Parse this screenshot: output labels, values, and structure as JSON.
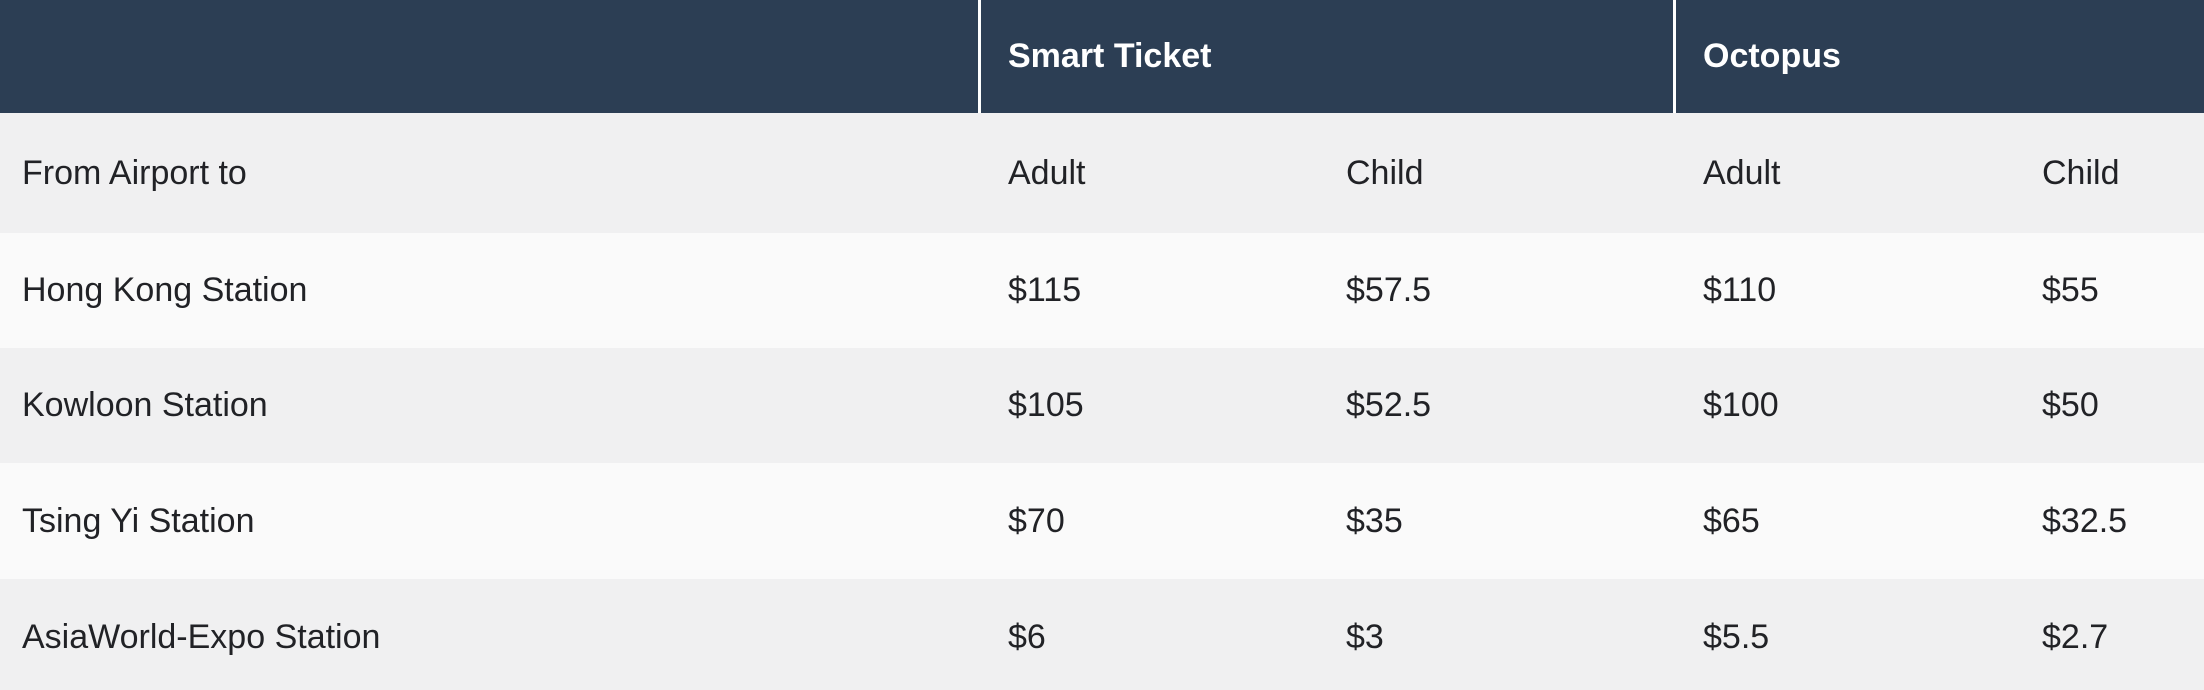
{
  "table": {
    "header_groups": {
      "smart_ticket": "Smart Ticket",
      "octopus": "Octopus"
    },
    "subheader": {
      "station_col": "From Airport to",
      "smart_adult": "Adult",
      "smart_child": "Child",
      "octopus_adult": "Adult",
      "octopus_child": "Child"
    },
    "rows": [
      {
        "station": "Hong Kong Station",
        "smart_adult": "$115",
        "smart_child": "$57.5",
        "octopus_adult": "$110",
        "octopus_child": "$55"
      },
      {
        "station": "Kowloon Station",
        "smart_adult": "$105",
        "smart_child": "$52.5",
        "octopus_adult": "$100",
        "octopus_child": "$50"
      },
      {
        "station": "Tsing Yi Station",
        "smart_adult": "$70",
        "smart_child": "$35",
        "octopus_adult": "$65",
        "octopus_child": "$32.5"
      },
      {
        "station": "AsiaWorld-Expo Station",
        "smart_adult": "$6",
        "smart_child": "$3",
        "octopus_adult": "$5.5",
        "octopus_child": "$2.7"
      }
    ]
  },
  "colors": {
    "header_bg": "#2c3e54",
    "header_text": "#ffffff",
    "row_alt_bg": "#f0f0f1",
    "row_bg": "#fafafa",
    "body_text": "#212226",
    "divider": "#ffffff"
  }
}
